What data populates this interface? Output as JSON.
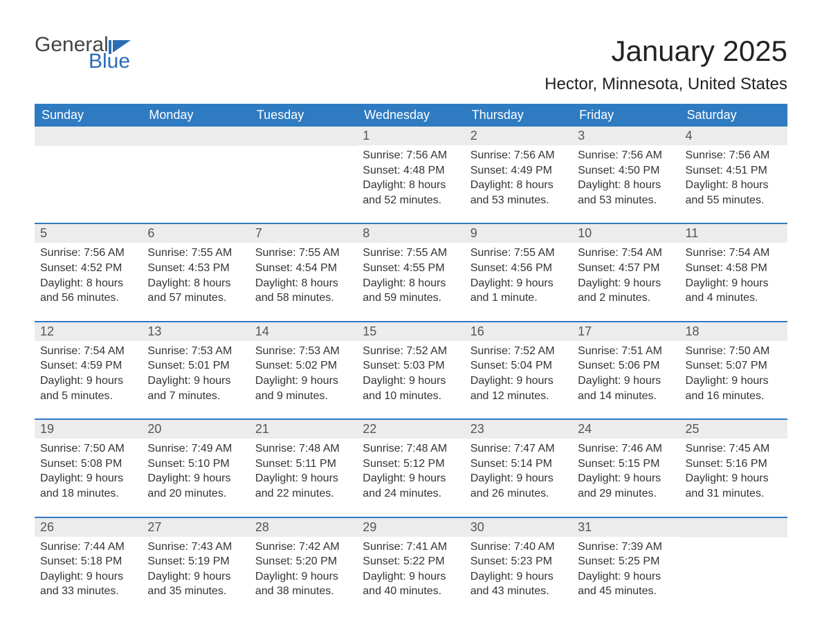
{
  "logo": {
    "general": "General",
    "blue": "Blue"
  },
  "title": "January 2025",
  "location": "Hector, Minnesota, United States",
  "colors": {
    "header_bg": "#2f7bc2",
    "header_text": "#ffffff",
    "daynum_bg": "#ececec",
    "week_border": "#2f7bc2",
    "logo_blue": "#2a6db6",
    "text": "#333333",
    "background": "#ffffff"
  },
  "day_headers": [
    "Sunday",
    "Monday",
    "Tuesday",
    "Wednesday",
    "Thursday",
    "Friday",
    "Saturday"
  ],
  "weeks": [
    [
      null,
      null,
      null,
      {
        "n": "1",
        "sunrise": "Sunrise: 7:56 AM",
        "sunset": "Sunset: 4:48 PM",
        "daylight": "Daylight: 8 hours and 52 minutes."
      },
      {
        "n": "2",
        "sunrise": "Sunrise: 7:56 AM",
        "sunset": "Sunset: 4:49 PM",
        "daylight": "Daylight: 8 hours and 53 minutes."
      },
      {
        "n": "3",
        "sunrise": "Sunrise: 7:56 AM",
        "sunset": "Sunset: 4:50 PM",
        "daylight": "Daylight: 8 hours and 53 minutes."
      },
      {
        "n": "4",
        "sunrise": "Sunrise: 7:56 AM",
        "sunset": "Sunset: 4:51 PM",
        "daylight": "Daylight: 8 hours and 55 minutes."
      }
    ],
    [
      {
        "n": "5",
        "sunrise": "Sunrise: 7:56 AM",
        "sunset": "Sunset: 4:52 PM",
        "daylight": "Daylight: 8 hours and 56 minutes."
      },
      {
        "n": "6",
        "sunrise": "Sunrise: 7:55 AM",
        "sunset": "Sunset: 4:53 PM",
        "daylight": "Daylight: 8 hours and 57 minutes."
      },
      {
        "n": "7",
        "sunrise": "Sunrise: 7:55 AM",
        "sunset": "Sunset: 4:54 PM",
        "daylight": "Daylight: 8 hours and 58 minutes."
      },
      {
        "n": "8",
        "sunrise": "Sunrise: 7:55 AM",
        "sunset": "Sunset: 4:55 PM",
        "daylight": "Daylight: 8 hours and 59 minutes."
      },
      {
        "n": "9",
        "sunrise": "Sunrise: 7:55 AM",
        "sunset": "Sunset: 4:56 PM",
        "daylight": "Daylight: 9 hours and 1 minute."
      },
      {
        "n": "10",
        "sunrise": "Sunrise: 7:54 AM",
        "sunset": "Sunset: 4:57 PM",
        "daylight": "Daylight: 9 hours and 2 minutes."
      },
      {
        "n": "11",
        "sunrise": "Sunrise: 7:54 AM",
        "sunset": "Sunset: 4:58 PM",
        "daylight": "Daylight: 9 hours and 4 minutes."
      }
    ],
    [
      {
        "n": "12",
        "sunrise": "Sunrise: 7:54 AM",
        "sunset": "Sunset: 4:59 PM",
        "daylight": "Daylight: 9 hours and 5 minutes."
      },
      {
        "n": "13",
        "sunrise": "Sunrise: 7:53 AM",
        "sunset": "Sunset: 5:01 PM",
        "daylight": "Daylight: 9 hours and 7 minutes."
      },
      {
        "n": "14",
        "sunrise": "Sunrise: 7:53 AM",
        "sunset": "Sunset: 5:02 PM",
        "daylight": "Daylight: 9 hours and 9 minutes."
      },
      {
        "n": "15",
        "sunrise": "Sunrise: 7:52 AM",
        "sunset": "Sunset: 5:03 PM",
        "daylight": "Daylight: 9 hours and 10 minutes."
      },
      {
        "n": "16",
        "sunrise": "Sunrise: 7:52 AM",
        "sunset": "Sunset: 5:04 PM",
        "daylight": "Daylight: 9 hours and 12 minutes."
      },
      {
        "n": "17",
        "sunrise": "Sunrise: 7:51 AM",
        "sunset": "Sunset: 5:06 PM",
        "daylight": "Daylight: 9 hours and 14 minutes."
      },
      {
        "n": "18",
        "sunrise": "Sunrise: 7:50 AM",
        "sunset": "Sunset: 5:07 PM",
        "daylight": "Daylight: 9 hours and 16 minutes."
      }
    ],
    [
      {
        "n": "19",
        "sunrise": "Sunrise: 7:50 AM",
        "sunset": "Sunset: 5:08 PM",
        "daylight": "Daylight: 9 hours and 18 minutes."
      },
      {
        "n": "20",
        "sunrise": "Sunrise: 7:49 AM",
        "sunset": "Sunset: 5:10 PM",
        "daylight": "Daylight: 9 hours and 20 minutes."
      },
      {
        "n": "21",
        "sunrise": "Sunrise: 7:48 AM",
        "sunset": "Sunset: 5:11 PM",
        "daylight": "Daylight: 9 hours and 22 minutes."
      },
      {
        "n": "22",
        "sunrise": "Sunrise: 7:48 AM",
        "sunset": "Sunset: 5:12 PM",
        "daylight": "Daylight: 9 hours and 24 minutes."
      },
      {
        "n": "23",
        "sunrise": "Sunrise: 7:47 AM",
        "sunset": "Sunset: 5:14 PM",
        "daylight": "Daylight: 9 hours and 26 minutes."
      },
      {
        "n": "24",
        "sunrise": "Sunrise: 7:46 AM",
        "sunset": "Sunset: 5:15 PM",
        "daylight": "Daylight: 9 hours and 29 minutes."
      },
      {
        "n": "25",
        "sunrise": "Sunrise: 7:45 AM",
        "sunset": "Sunset: 5:16 PM",
        "daylight": "Daylight: 9 hours and 31 minutes."
      }
    ],
    [
      {
        "n": "26",
        "sunrise": "Sunrise: 7:44 AM",
        "sunset": "Sunset: 5:18 PM",
        "daylight": "Daylight: 9 hours and 33 minutes."
      },
      {
        "n": "27",
        "sunrise": "Sunrise: 7:43 AM",
        "sunset": "Sunset: 5:19 PM",
        "daylight": "Daylight: 9 hours and 35 minutes."
      },
      {
        "n": "28",
        "sunrise": "Sunrise: 7:42 AM",
        "sunset": "Sunset: 5:20 PM",
        "daylight": "Daylight: 9 hours and 38 minutes."
      },
      {
        "n": "29",
        "sunrise": "Sunrise: 7:41 AM",
        "sunset": "Sunset: 5:22 PM",
        "daylight": "Daylight: 9 hours and 40 minutes."
      },
      {
        "n": "30",
        "sunrise": "Sunrise: 7:40 AM",
        "sunset": "Sunset: 5:23 PM",
        "daylight": "Daylight: 9 hours and 43 minutes."
      },
      {
        "n": "31",
        "sunrise": "Sunrise: 7:39 AM",
        "sunset": "Sunset: 5:25 PM",
        "daylight": "Daylight: 9 hours and 45 minutes."
      },
      null
    ]
  ]
}
